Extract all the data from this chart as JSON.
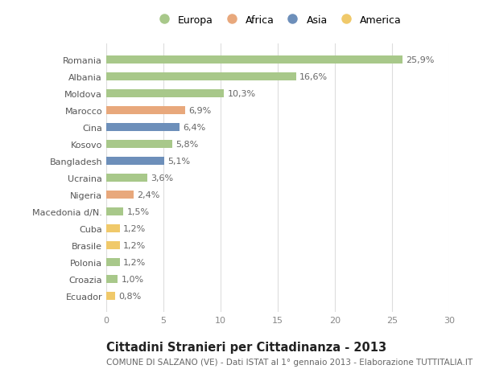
{
  "countries": [
    "Romania",
    "Albania",
    "Moldova",
    "Marocco",
    "Cina",
    "Kosovo",
    "Bangladesh",
    "Ucraina",
    "Nigeria",
    "Macedonia d/N.",
    "Cuba",
    "Brasile",
    "Polonia",
    "Croazia",
    "Ecuador"
  ],
  "values": [
    25.9,
    16.6,
    10.3,
    6.9,
    6.4,
    5.8,
    5.1,
    3.6,
    2.4,
    1.5,
    1.2,
    1.2,
    1.2,
    1.0,
    0.8
  ],
  "continents": [
    "Europa",
    "Europa",
    "Europa",
    "Africa",
    "Asia",
    "Europa",
    "Asia",
    "Europa",
    "Africa",
    "Europa",
    "America",
    "America",
    "Europa",
    "Europa",
    "America"
  ],
  "colors": {
    "Europa": "#a8c88a",
    "Africa": "#e8a87c",
    "Asia": "#6d8fba",
    "America": "#f0c96a"
  },
  "legend_items": [
    "Europa",
    "Africa",
    "Asia",
    "America"
  ],
  "legend_colors": [
    "#a8c88a",
    "#e8a87c",
    "#6d8fba",
    "#f0c96a"
  ],
  "title": "Cittadini Stranieri per Cittadinanza - 2013",
  "subtitle": "COMUNE DI SALZANO (VE) - Dati ISTAT al 1° gennaio 2013 - Elaborazione TUTTITALIA.IT",
  "xlim": [
    0,
    30
  ],
  "xticks": [
    0,
    5,
    10,
    15,
    20,
    25,
    30
  ],
  "bg_color": "#ffffff",
  "grid_color": "#dddddd",
  "bar_height": 0.45,
  "label_fontsize": 8,
  "tick_fontsize": 8,
  "title_fontsize": 10.5,
  "subtitle_fontsize": 7.5
}
